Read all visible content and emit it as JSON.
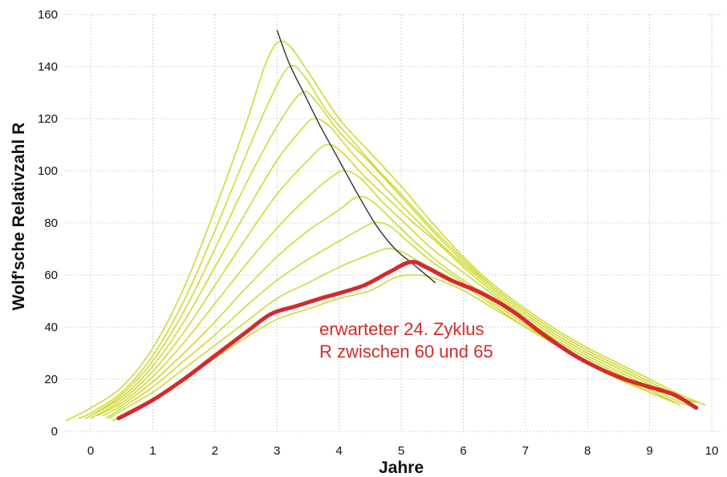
{
  "chart_data": {
    "type": "line",
    "xlabel": "Jahre",
    "ylabel": "Wolf'sche Relativzahl R",
    "xlim": [
      -0.45,
      10.1
    ],
    "ylim": [
      0,
      160
    ],
    "x_ticks": [
      0,
      1,
      2,
      3,
      4,
      5,
      6,
      7,
      8,
      9,
      10
    ],
    "y_ticks": [
      0,
      20,
      40,
      60,
      80,
      100,
      120,
      140,
      160
    ],
    "grid": true,
    "annotation": [
      "erwarteter 24. Zyklus",
      "R zwischen 60 und 65"
    ],
    "colors": {
      "model_curves": "#cfd933",
      "expected_cycle": "#d42a2a",
      "peak_trend": "#333333",
      "grid": "#c8c8c8",
      "annotation": "#d42a2a"
    },
    "model_curves": [
      {
        "peak": 150,
        "points": [
          [
            -0.4,
            4
          ],
          [
            0,
            9
          ],
          [
            0.5,
            17
          ],
          [
            1,
            32
          ],
          [
            1.5,
            55
          ],
          [
            2,
            85
          ],
          [
            2.5,
            118
          ],
          [
            2.8,
            140
          ],
          [
            3.0,
            149
          ],
          [
            3.2,
            148
          ],
          [
            3.5,
            138
          ],
          [
            4,
            120
          ],
          [
            4.5,
            107
          ],
          [
            5,
            94
          ],
          [
            5.5,
            80
          ],
          [
            6,
            67
          ],
          [
            6.5,
            56
          ],
          [
            7,
            47
          ],
          [
            7.5,
            39
          ],
          [
            8,
            32
          ],
          [
            8.5,
            26
          ],
          [
            9,
            20
          ],
          [
            9.5,
            14
          ],
          [
            9.9,
            10
          ]
        ]
      },
      {
        "peak": 140,
        "points": [
          [
            -0.2,
            5
          ],
          [
            0,
            7
          ],
          [
            0.5,
            15
          ],
          [
            1,
            29
          ],
          [
            1.5,
            50
          ],
          [
            2,
            77
          ],
          [
            2.5,
            106
          ],
          [
            2.9,
            128
          ],
          [
            3.2,
            140
          ],
          [
            3.45,
            136
          ],
          [
            3.8,
            123
          ],
          [
            4.2,
            112
          ],
          [
            4.6,
            101
          ],
          [
            5,
            91
          ],
          [
            5.5,
            78
          ],
          [
            6,
            66
          ],
          [
            6.5,
            55
          ],
          [
            7,
            46
          ],
          [
            7.5,
            38
          ],
          [
            8,
            31
          ],
          [
            8.5,
            25
          ],
          [
            9,
            19
          ],
          [
            9.5,
            13
          ],
          [
            9.8,
            11
          ]
        ]
      },
      {
        "peak": 130,
        "points": [
          [
            -0.1,
            5
          ],
          [
            0,
            6
          ],
          [
            0.5,
            14
          ],
          [
            1,
            27
          ],
          [
            1.5,
            46
          ],
          [
            2,
            70
          ],
          [
            2.5,
            95
          ],
          [
            3,
            117
          ],
          [
            3.4,
            130
          ],
          [
            3.65,
            126
          ],
          [
            4,
            115
          ],
          [
            4.5,
            103
          ],
          [
            5,
            90
          ],
          [
            5.5,
            77
          ],
          [
            6,
            65
          ],
          [
            6.5,
            55
          ],
          [
            7,
            46
          ],
          [
            7.5,
            38
          ],
          [
            8,
            31
          ],
          [
            8.5,
            25
          ],
          [
            9,
            19
          ],
          [
            9.5,
            13
          ],
          [
            9.75,
            11
          ]
        ]
      },
      {
        "peak": 120,
        "points": [
          [
            0,
            6
          ],
          [
            0.5,
            13
          ],
          [
            1,
            25
          ],
          [
            1.5,
            42
          ],
          [
            2,
            63
          ],
          [
            2.5,
            84
          ],
          [
            3,
            104
          ],
          [
            3.4,
            116
          ],
          [
            3.6,
            120
          ],
          [
            3.85,
            117
          ],
          [
            4.2,
            107
          ],
          [
            4.6,
            97
          ],
          [
            5,
            87
          ],
          [
            5.5,
            75
          ],
          [
            6,
            64
          ],
          [
            6.5,
            54
          ],
          [
            7,
            45
          ],
          [
            7.5,
            37
          ],
          [
            8,
            30
          ],
          [
            8.5,
            24
          ],
          [
            9,
            18
          ],
          [
            9.5,
            12
          ],
          [
            9.7,
            10
          ]
        ]
      },
      {
        "peak": 110,
        "points": [
          [
            0,
            5
          ],
          [
            0.5,
            12
          ],
          [
            1,
            23
          ],
          [
            1.5,
            38
          ],
          [
            2,
            56
          ],
          [
            2.5,
            74
          ],
          [
            3,
            91
          ],
          [
            3.5,
            104
          ],
          [
            3.8,
            110
          ],
          [
            4.05,
            107
          ],
          [
            4.4,
            98
          ],
          [
            4.8,
            89
          ],
          [
            5.2,
            80
          ],
          [
            5.6,
            72
          ],
          [
            6,
            63
          ],
          [
            6.5,
            53
          ],
          [
            7,
            44
          ],
          [
            7.5,
            36
          ],
          [
            8,
            29
          ],
          [
            8.5,
            23
          ],
          [
            9,
            17
          ],
          [
            9.5,
            11
          ],
          [
            9.65,
            10
          ]
        ]
      },
      {
        "peak": 100,
        "points": [
          [
            0.1,
            6
          ],
          [
            0.5,
            11
          ],
          [
            1,
            21
          ],
          [
            1.5,
            34
          ],
          [
            2,
            49
          ],
          [
            2.5,
            64
          ],
          [
            3,
            78
          ],
          [
            3.5,
            90
          ],
          [
            3.9,
            98
          ],
          [
            4.1,
            100
          ],
          [
            4.35,
            97
          ],
          [
            4.7,
            88
          ],
          [
            5.1,
            79
          ],
          [
            5.5,
            70
          ],
          [
            6,
            61
          ],
          [
            6.5,
            52
          ],
          [
            7,
            43
          ],
          [
            7.5,
            35
          ],
          [
            8,
            28
          ],
          [
            8.5,
            22
          ],
          [
            9,
            16
          ],
          [
            9.5,
            10
          ]
        ]
      },
      {
        "peak": 90,
        "points": [
          [
            0.2,
            6
          ],
          [
            0.5,
            10
          ],
          [
            1,
            19
          ],
          [
            1.5,
            30
          ],
          [
            2,
            42
          ],
          [
            2.5,
            55
          ],
          [
            3,
            67
          ],
          [
            3.5,
            77
          ],
          [
            4,
            85
          ],
          [
            4.3,
            90
          ],
          [
            4.55,
            88
          ],
          [
            4.9,
            80
          ],
          [
            5.3,
            71
          ],
          [
            5.7,
            63
          ],
          [
            6,
            58
          ],
          [
            6.5,
            50
          ],
          [
            7,
            42
          ],
          [
            7.5,
            34
          ],
          [
            8,
            27
          ],
          [
            8.5,
            21
          ],
          [
            9,
            15
          ],
          [
            9.4,
            11
          ]
        ]
      },
      {
        "peak": 80,
        "points": [
          [
            0.25,
            5
          ],
          [
            0.5,
            9
          ],
          [
            1,
            17
          ],
          [
            1.5,
            27
          ],
          [
            2,
            37
          ],
          [
            2.5,
            48
          ],
          [
            3,
            58
          ],
          [
            3.5,
            66
          ],
          [
            4,
            73
          ],
          [
            4.3,
            77
          ],
          [
            4.55,
            80
          ],
          [
            4.8,
            79
          ],
          [
            5.1,
            73
          ],
          [
            5.5,
            65
          ],
          [
            6,
            57
          ],
          [
            6.5,
            49
          ],
          [
            7,
            41
          ],
          [
            7.5,
            33
          ],
          [
            8,
            27
          ],
          [
            8.5,
            21
          ],
          [
            9,
            15
          ],
          [
            9.3,
            12
          ]
        ]
      },
      {
        "peak": 70,
        "points": [
          [
            0.3,
            5
          ],
          [
            0.5,
            8
          ],
          [
            1,
            15
          ],
          [
            1.5,
            24
          ],
          [
            2,
            33
          ],
          [
            2.5,
            42
          ],
          [
            3,
            51
          ],
          [
            3.5,
            57
          ],
          [
            4,
            63
          ],
          [
            4.4,
            67
          ],
          [
            4.75,
            70
          ],
          [
            5,
            69
          ],
          [
            5.3,
            65
          ],
          [
            5.7,
            60
          ],
          [
            6,
            56
          ],
          [
            6.5,
            48
          ],
          [
            7,
            40
          ],
          [
            7.5,
            33
          ],
          [
            8,
            26
          ],
          [
            8.5,
            20
          ],
          [
            9,
            15
          ],
          [
            9.2,
            13
          ]
        ]
      },
      {
        "peak": 60,
        "points": [
          [
            0.35,
            4
          ],
          [
            0.5,
            6
          ],
          [
            1,
            12
          ],
          [
            1.5,
            20
          ],
          [
            2,
            28
          ],
          [
            2.5,
            36
          ],
          [
            3,
            43
          ],
          [
            3.5,
            47
          ],
          [
            4,
            51
          ],
          [
            4.5,
            54
          ],
          [
            4.9,
            59
          ],
          [
            5.2,
            60
          ],
          [
            5.5,
            59
          ],
          [
            6,
            54
          ],
          [
            6.5,
            47
          ],
          [
            7,
            40
          ],
          [
            7.5,
            33
          ],
          [
            8,
            26
          ],
          [
            8.5,
            20
          ],
          [
            9,
            15
          ],
          [
            9.1,
            14
          ]
        ]
      }
    ],
    "series": [
      {
        "name": "erwarteter 24. Zyklus",
        "points": [
          [
            0.45,
            5
          ],
          [
            1,
            12
          ],
          [
            1.5,
            20
          ],
          [
            2,
            29
          ],
          [
            2.5,
            38
          ],
          [
            2.9,
            45
          ],
          [
            3.3,
            48
          ],
          [
            3.7,
            51
          ],
          [
            4,
            53
          ],
          [
            4.4,
            56
          ],
          [
            4.8,
            61
          ],
          [
            5.15,
            65
          ],
          [
            5.4,
            63
          ],
          [
            5.8,
            58
          ],
          [
            6.3,
            53
          ],
          [
            6.8,
            46
          ],
          [
            7.3,
            37
          ],
          [
            7.8,
            29
          ],
          [
            8.2,
            24
          ],
          [
            8.6,
            20
          ],
          [
            9,
            17
          ],
          [
            9.4,
            14
          ],
          [
            9.75,
            9
          ]
        ]
      }
    ],
    "peak_trend": {
      "points": [
        [
          3.0,
          154
        ],
        [
          3.2,
          141
        ],
        [
          3.45,
          129
        ],
        [
          3.7,
          117
        ],
        [
          4,
          104
        ],
        [
          4.3,
          91
        ],
        [
          4.6,
          79
        ],
        [
          4.9,
          70
        ],
        [
          5.2,
          64
        ],
        [
          5.55,
          57
        ]
      ]
    }
  }
}
